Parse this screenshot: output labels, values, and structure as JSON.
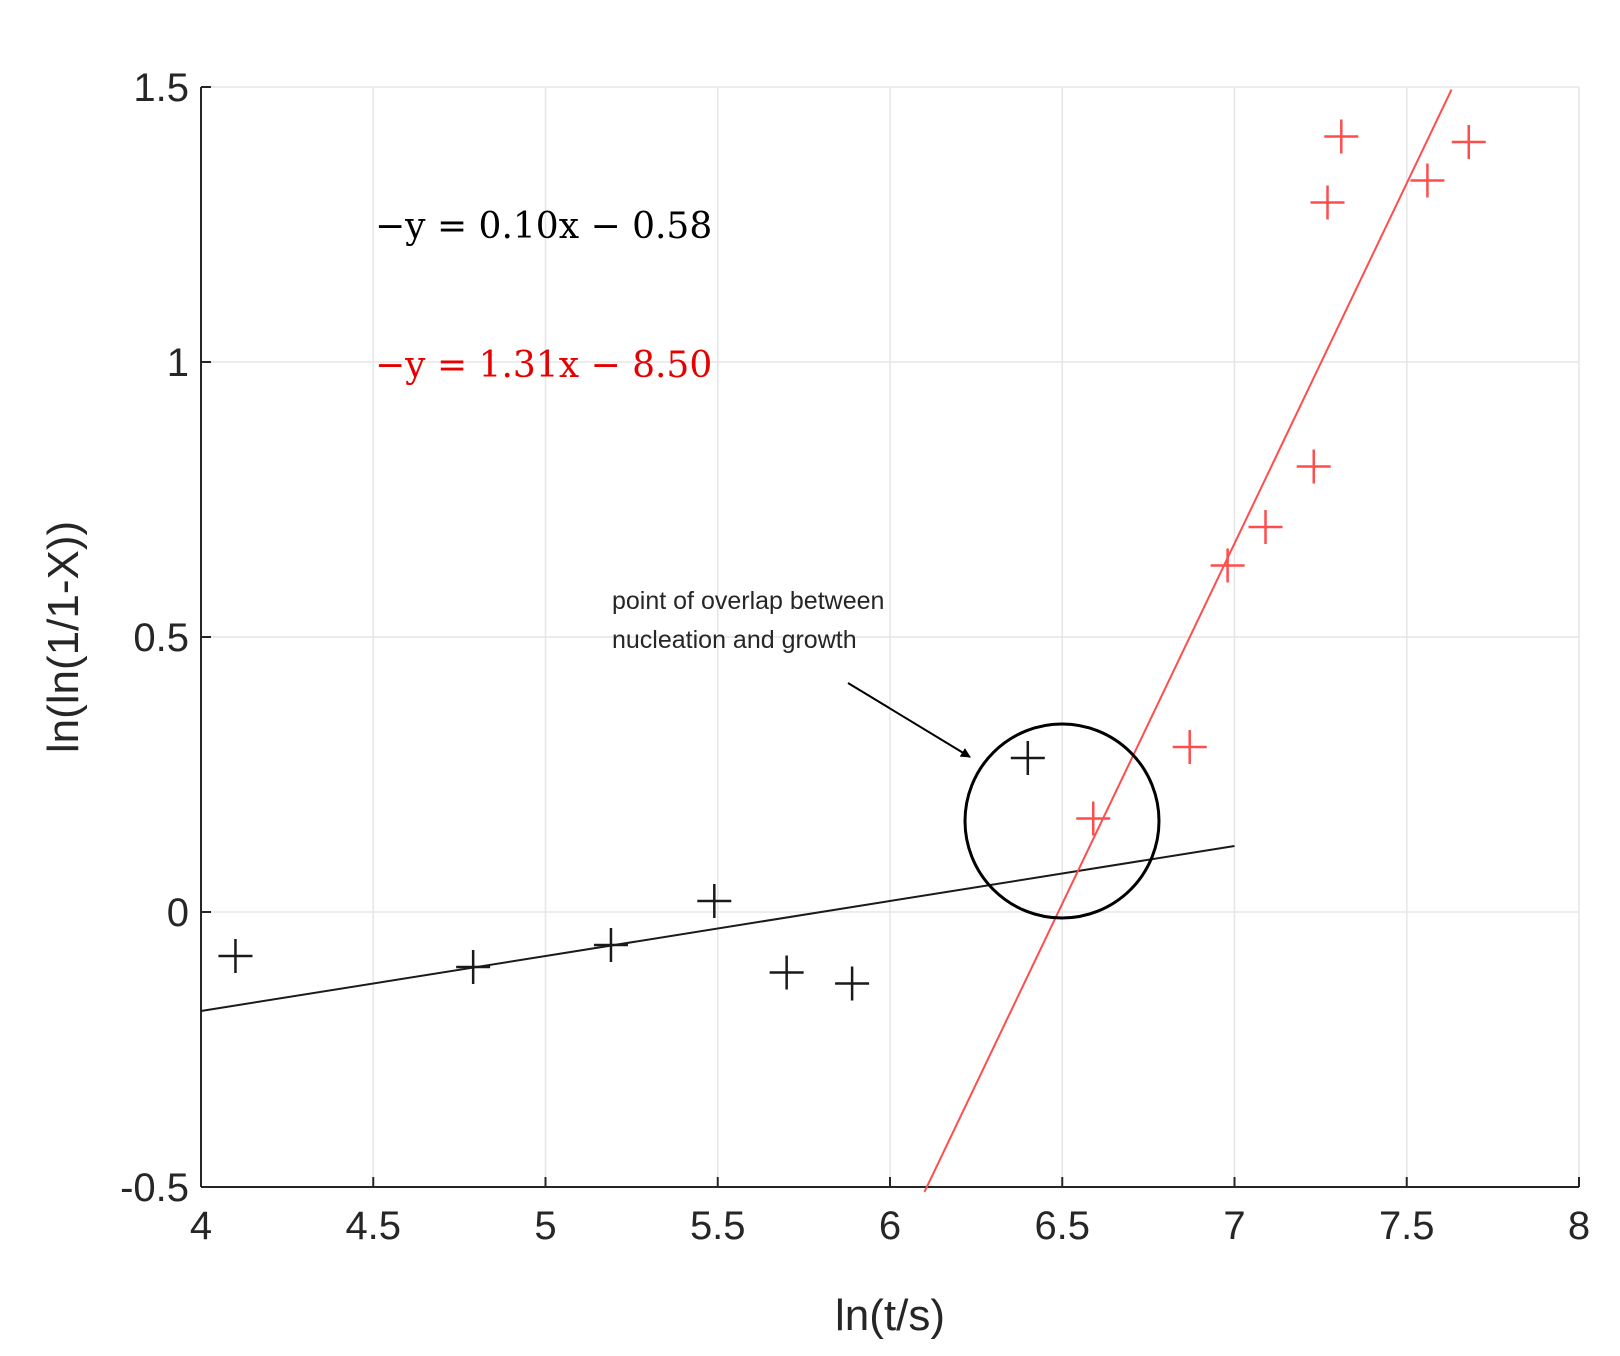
{
  "chart_data": {
    "type": "scatter",
    "xlabel": "ln(t/s)",
    "ylabel": "ln(ln(1/1-X))",
    "xlim": [
      4,
      8
    ],
    "ylim": [
      -0.5,
      1.5
    ],
    "xticks": [
      "4",
      "4.5",
      "5",
      "5.5",
      "6",
      "6.5",
      "7",
      "7.5",
      "8"
    ],
    "yticks": [
      "-0.5",
      "0",
      "0.5",
      "1",
      "1.5"
    ],
    "grid": true,
    "series": [
      {
        "color": "#1a1a1a",
        "marker": "+",
        "points": [
          {
            "x": 4.1,
            "y": -0.08
          },
          {
            "x": 4.79,
            "y": -0.1
          },
          {
            "x": 5.19,
            "y": -0.06
          },
          {
            "x": 5.49,
            "y": 0.02
          },
          {
            "x": 5.7,
            "y": -0.11
          },
          {
            "x": 5.89,
            "y": -0.13
          },
          {
            "x": 6.4,
            "y": 0.28
          }
        ]
      },
      {
        "color": "#ff4d4d",
        "marker": "+",
        "points": [
          {
            "x": 6.59,
            "y": 0.17
          },
          {
            "x": 6.87,
            "y": 0.3
          },
          {
            "x": 6.98,
            "y": 0.63
          },
          {
            "x": 7.09,
            "y": 0.7
          },
          {
            "x": 7.23,
            "y": 0.81
          },
          {
            "x": 7.27,
            "y": 1.29
          },
          {
            "x": 7.31,
            "y": 1.41
          },
          {
            "x": 7.56,
            "y": 1.33
          },
          {
            "x": 7.68,
            "y": 1.4
          }
        ]
      }
    ],
    "fit_lines": [
      {
        "color": "#1a1a1a",
        "slope": 0.1,
        "intercept": -0.58,
        "x_range": [
          4,
          7
        ]
      },
      {
        "color": "#ff4d4d",
        "slope": 1.31,
        "intercept": -8.5,
        "x_range": [
          6.1,
          7.63
        ]
      }
    ],
    "annotations": {
      "equation_black": "−y = 0.10x − 0.58",
      "equation_red": "−y = 1.31x − 8.50",
      "equation_black_color": "#000000",
      "equation_red_color": "#e60000",
      "overlap_line1": "point of overlap between",
      "overlap_line2": "nucleation and growth"
    }
  }
}
